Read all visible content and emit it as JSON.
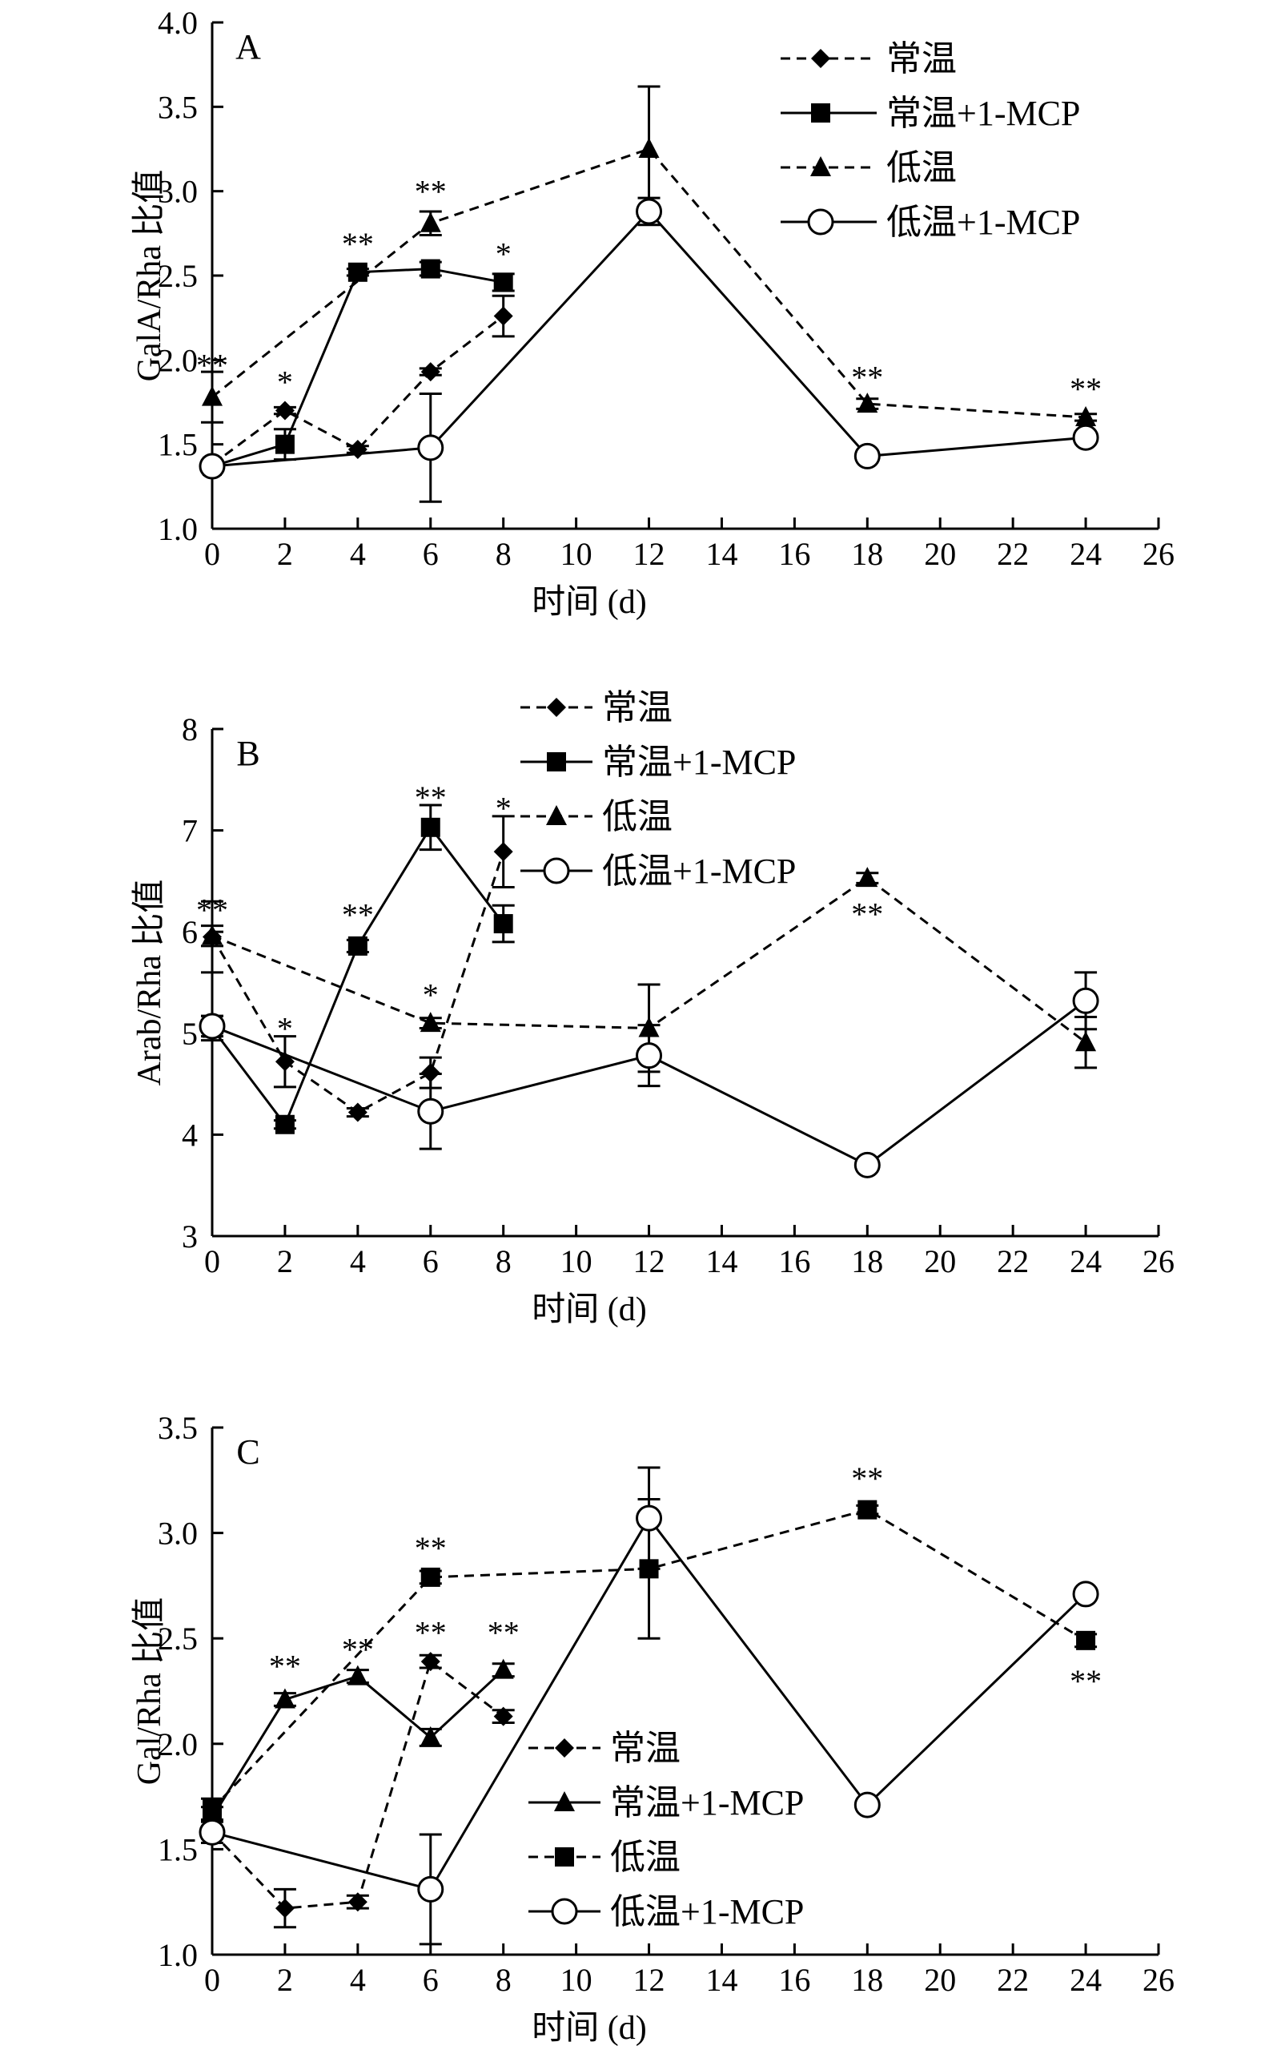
{
  "chart_data": [
    {
      "type": "line",
      "panel_label": "A",
      "title": "",
      "xlabel": "时间 (d)",
      "ylabel": "GalA/Rha 比值",
      "xlim": [
        0,
        26
      ],
      "ylim": [
        1.0,
        4.0
      ],
      "x_ticks": [
        "0",
        "2",
        "4",
        "6",
        "8",
        "10",
        "12",
        "14",
        "16",
        "18",
        "20",
        "22",
        "24",
        "26"
      ],
      "y_ticks": [
        "1.0",
        "1.5",
        "2.0",
        "2.5",
        "3.0",
        "3.5",
        "4.0"
      ],
      "grid": false,
      "legend_position": "top-right",
      "series": [
        {
          "name": "常温",
          "line": "dashed",
          "marker": "diamond",
          "x": [
            0,
            2,
            4,
            6,
            8
          ],
          "y": [
            1.38,
            1.7,
            1.47,
            1.93,
            2.26
          ],
          "err": [
            0.02,
            0.02,
            0.02,
            0.02,
            0.12
          ]
        },
        {
          "name": "常温+1-MCP",
          "line": "solid",
          "marker": "square",
          "x": [
            0,
            2,
            4,
            6,
            8
          ],
          "y": [
            1.37,
            1.5,
            2.52,
            2.54,
            2.46
          ],
          "err": [
            0.02,
            0.09,
            0.02,
            0.04,
            0.05
          ]
        },
        {
          "name": "低温",
          "line": "dashed",
          "marker": "triangle",
          "x": [
            0,
            6,
            12,
            18,
            24
          ],
          "y": [
            1.78,
            2.81,
            3.25,
            1.74,
            1.66
          ],
          "err": [
            0.15,
            0.07,
            0.37,
            0.03,
            0.02
          ]
        },
        {
          "name": "低温+1-MCP",
          "line": "solid",
          "marker": "circle",
          "x": [
            0,
            6,
            12,
            18,
            24
          ],
          "y": [
            1.37,
            1.48,
            2.88,
            1.43,
            1.54
          ],
          "err": [
            0.02,
            0.32,
            0.08,
            0.03,
            0.02
          ]
        }
      ],
      "annotations": [
        {
          "text": "**",
          "x": 0,
          "y": 1.97
        },
        {
          "text": "*",
          "x": 2,
          "y": 1.87
        },
        {
          "text": "**",
          "x": 4,
          "y": 2.69
        },
        {
          "text": "**",
          "x": 6,
          "y": 3.0
        },
        {
          "text": "*",
          "x": 8,
          "y": 2.63
        },
        {
          "text": "**",
          "x": 18,
          "y": 1.9
        },
        {
          "text": "**",
          "x": 24,
          "y": 1.83
        }
      ]
    },
    {
      "type": "line",
      "panel_label": "B",
      "title": "",
      "xlabel": "时间 (d)",
      "ylabel": "Arab/Rha 比值",
      "xlim": [
        0,
        26
      ],
      "ylim": [
        3,
        8
      ],
      "x_ticks": [
        "0",
        "2",
        "4",
        "6",
        "8",
        "10",
        "12",
        "14",
        "16",
        "18",
        "20",
        "22",
        "24",
        "26"
      ],
      "y_ticks": [
        "3",
        "4",
        "5",
        "6",
        "7",
        "8"
      ],
      "grid": false,
      "legend_position": "top-center",
      "series": [
        {
          "name": "常温",
          "line": "dashed",
          "marker": "diamond",
          "x": [
            0,
            2,
            4,
            6,
            8
          ],
          "y": [
            5.95,
            4.72,
            4.22,
            4.61,
            6.79
          ],
          "err": [
            0.35,
            0.25,
            0.04,
            0.15,
            0.35
          ]
        },
        {
          "name": "常温+1-MCP",
          "line": "solid",
          "marker": "square",
          "x": [
            0,
            2,
            4,
            6,
            8
          ],
          "y": [
            5.05,
            4.1,
            5.86,
            7.03,
            6.08
          ],
          "err": [
            0.12,
            0.04,
            0.06,
            0.22,
            0.18
          ]
        },
        {
          "name": "低温",
          "line": "dashed",
          "marker": "triangle",
          "x": [
            0,
            6,
            12,
            18,
            24
          ],
          "y": [
            5.96,
            5.1,
            5.05,
            6.53,
            4.91
          ],
          "err": [
            0.1,
            0.05,
            0.43,
            0.05,
            0.25
          ]
        },
        {
          "name": "低温+1-MCP",
          "line": "solid",
          "marker": "circle",
          "x": [
            0,
            6,
            12,
            18,
            24
          ],
          "y": [
            5.07,
            4.23,
            4.78,
            3.7,
            5.32
          ],
          "err": [
            0.1,
            0.37,
            0.3,
            0.04,
            0.28
          ]
        }
      ],
      "annotations": [
        {
          "text": "**",
          "x": 0,
          "y": 6.22
        },
        {
          "text": "*",
          "x": 2,
          "y": 5.05
        },
        {
          "text": "**",
          "x": 4,
          "y": 6.17
        },
        {
          "text": "**",
          "x": 6,
          "y": 7.33
        },
        {
          "text": "*",
          "x": 6,
          "y": 5.38
        },
        {
          "text": "*",
          "x": 8,
          "y": 7.22
        },
        {
          "text": "**",
          "x": 18,
          "y": 6.18
        }
      ]
    },
    {
      "type": "line",
      "panel_label": "C",
      "title": "",
      "xlabel": "时间 (d)",
      "ylabel": "Gal/Rha 比值",
      "xlim": [
        0,
        26
      ],
      "ylim": [
        1.0,
        3.5
      ],
      "x_ticks": [
        "0",
        "2",
        "4",
        "6",
        "8",
        "10",
        "12",
        "14",
        "16",
        "18",
        "20",
        "22",
        "24",
        "26"
      ],
      "y_ticks": [
        "1.0",
        "1.5",
        "2.0",
        "2.5",
        "3.0",
        "3.5"
      ],
      "grid": false,
      "legend_position": "bottom-center",
      "series": [
        {
          "name": "常温",
          "line": "dashed",
          "marker": "diamond",
          "x": [
            0,
            2,
            4,
            6,
            8
          ],
          "y": [
            1.58,
            1.22,
            1.25,
            2.39,
            2.13
          ],
          "err": [
            0.05,
            0.09,
            0.03,
            0.03,
            0.03
          ]
        },
        {
          "name": "常温+1-MCP",
          "line": "solid",
          "marker": "triangle",
          "x": [
            0,
            2,
            4,
            6,
            8
          ],
          "y": [
            1.65,
            2.21,
            2.32,
            2.03,
            2.35
          ],
          "err": [
            0.05,
            0.03,
            0.03,
            0.04,
            0.03
          ]
        },
        {
          "name": "低温",
          "line": "dashed",
          "marker": "square",
          "x": [
            0,
            6,
            12,
            18,
            24
          ],
          "y": [
            1.69,
            2.79,
            2.83,
            3.11,
            2.49
          ],
          "err": [
            0.05,
            0.03,
            0.33,
            0.02,
            0.03
          ]
        },
        {
          "name": "低温+1-MCP",
          "line": "solid",
          "marker": "circle",
          "x": [
            0,
            6,
            12,
            18,
            24
          ],
          "y": [
            1.58,
            1.31,
            3.07,
            1.71,
            2.71
          ],
          "err": [
            0.05,
            0.26,
            0.24,
            0.02,
            0.02
          ]
        }
      ],
      "annotations": [
        {
          "text": "**",
          "x": 2,
          "y": 2.37
        },
        {
          "text": "**",
          "x": 4,
          "y": 2.45
        },
        {
          "text": "**",
          "x": 6,
          "y": 2.93
        },
        {
          "text": "**",
          "x": 6,
          "y": 2.53
        },
        {
          "text": "**",
          "x": 8,
          "y": 2.53
        },
        {
          "text": "**",
          "x": 18,
          "y": 3.26
        },
        {
          "text": "**",
          "x": 24,
          "y": 2.3
        }
      ]
    }
  ]
}
